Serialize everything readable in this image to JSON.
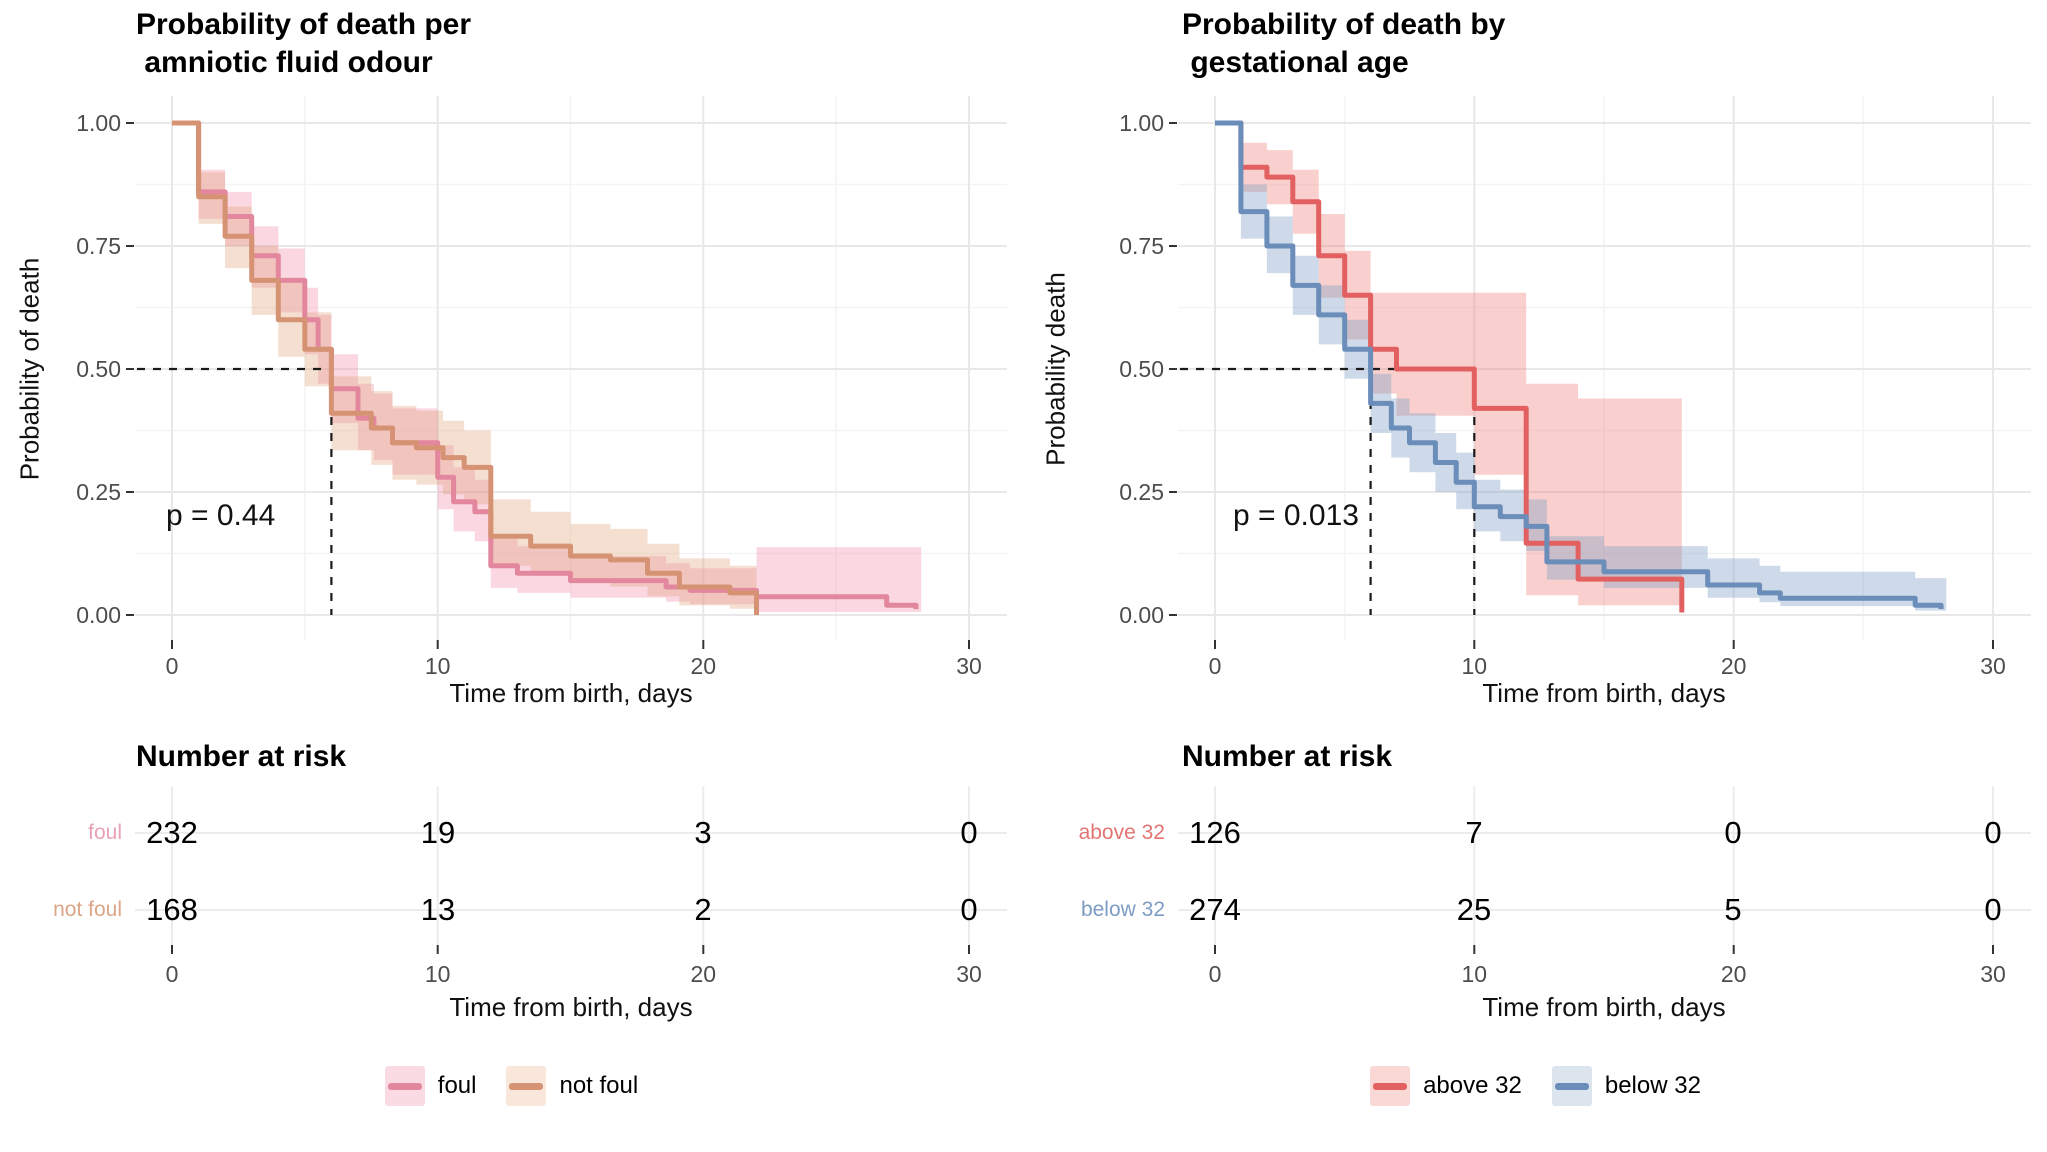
{
  "page": {
    "background": "#ffffff"
  },
  "chart_data": [
    {
      "type": "km_survival",
      "title": "Probability of death per\n amniotic fluid odour",
      "p_value_label": "p = 0.44",
      "x_axis": {
        "label": "Time from birth, days",
        "ticks": [
          0,
          10,
          20,
          30
        ],
        "minor_ticks": [
          5,
          15,
          25
        ],
        "range": [
          0,
          30
        ]
      },
      "y_axis": {
        "label": "Probability of death",
        "ticks": [
          "0.00",
          "0.25",
          "0.50",
          "0.75",
          "1.00"
        ],
        "tick_values": [
          0,
          0.25,
          0.5,
          0.75,
          1
        ],
        "range": [
          0,
          1
        ]
      },
      "grid": true,
      "legend_position": "bottom",
      "median_lines": {
        "prob": 0.5,
        "times": [
          6
        ]
      },
      "series": [
        {
          "name": "foul",
          "line_color": "#E2879E",
          "band_color": "#F08FAC",
          "band_opacity": 0.36,
          "legend_bg": "#FBDBE3",
          "steps": [
            [
              0,
              1
            ],
            [
              1,
              0.86
            ],
            [
              2,
              0.81
            ],
            [
              3,
              0.73
            ],
            [
              4,
              0.68
            ],
            [
              5,
              0.6
            ],
            [
              5.5,
              0.54
            ],
            [
              6,
              0.46
            ],
            [
              7,
              0.4
            ],
            [
              7.6,
              0.38
            ],
            [
              8.3,
              0.35
            ],
            [
              10,
              0.28
            ],
            [
              10.6,
              0.23
            ],
            [
              11.4,
              0.21
            ],
            [
              12,
              0.1
            ],
            [
              13,
              0.085
            ],
            [
              15,
              0.07
            ],
            [
              18.6,
              0.057
            ],
            [
              19.5,
              0.05
            ],
            [
              22,
              0.037
            ],
            [
              26.9,
              0.02
            ],
            [
              28,
              0.012
            ]
          ],
          "band": [
            [
              1,
              0.805,
              0.905
            ],
            [
              2,
              0.75,
              0.86
            ],
            [
              3,
              0.665,
              0.79
            ],
            [
              4,
              0.615,
              0.745
            ],
            [
              5,
              0.53,
              0.665
            ],
            [
              5.5,
              0.47,
              0.61
            ],
            [
              6,
              0.39,
              0.53
            ],
            [
              7,
              0.335,
              0.47
            ],
            [
              7.6,
              0.315,
              0.45
            ],
            [
              8.3,
              0.285,
              0.42
            ],
            [
              10,
              0.215,
              0.345
            ],
            [
              10.6,
              0.17,
              0.3
            ],
            [
              11.4,
              0.15,
              0.275
            ],
            [
              12,
              0.055,
              0.155
            ],
            [
              13,
              0.045,
              0.14
            ],
            [
              15,
              0.035,
              0.12
            ],
            [
              18.6,
              0.027,
              0.105
            ],
            [
              19.5,
              0.022,
              0.095
            ],
            [
              22,
              0.006,
              0.138
            ],
            [
              28.2,
              0.006,
              0.138
            ]
          ]
        },
        {
          "name": "not foul",
          "line_color": "#D69374",
          "band_color": "#DFA077",
          "band_opacity": 0.34,
          "legend_bg": "#F8E7DA",
          "steps": [
            [
              0,
              1
            ],
            [
              1,
              0.85
            ],
            [
              2,
              0.77
            ],
            [
              3,
              0.68
            ],
            [
              4,
              0.6
            ],
            [
              5,
              0.54
            ],
            [
              6,
              0.41
            ],
            [
              7.5,
              0.38
            ],
            [
              8.3,
              0.35
            ],
            [
              9.2,
              0.34
            ],
            [
              10.2,
              0.32
            ],
            [
              11,
              0.3
            ],
            [
              12,
              0.16
            ],
            [
              13.5,
              0.14
            ],
            [
              15,
              0.12
            ],
            [
              16.5,
              0.112
            ],
            [
              17.9,
              0.085
            ],
            [
              19.1,
              0.057
            ],
            [
              21,
              0.045
            ],
            [
              22,
              0
            ]
          ],
          "band": [
            [
              1,
              0.795,
              0.9
            ],
            [
              2,
              0.705,
              0.83
            ],
            [
              3,
              0.61,
              0.75
            ],
            [
              4,
              0.525,
              0.675
            ],
            [
              5,
              0.465,
              0.615
            ],
            [
              6,
              0.335,
              0.485
            ],
            [
              7.5,
              0.305,
              0.455
            ],
            [
              8.3,
              0.275,
              0.425
            ],
            [
              9.2,
              0.265,
              0.415
            ],
            [
              10.2,
              0.245,
              0.395
            ],
            [
              11,
              0.225,
              0.375
            ],
            [
              12,
              0.1,
              0.235
            ],
            [
              13.5,
              0.082,
              0.21
            ],
            [
              15,
              0.065,
              0.185
            ],
            [
              16.5,
              0.058,
              0.175
            ],
            [
              17.9,
              0.038,
              0.145
            ],
            [
              19.1,
              0.02,
              0.115
            ],
            [
              21,
              0.013,
              0.1
            ],
            [
              22,
              0,
              0
            ]
          ]
        }
      ],
      "risk_table": {
        "heading": "Number at risk",
        "rows": [
          {
            "label": "foul",
            "color": "#E8A2B5",
            "values": [
              232,
              19,
              3,
              0
            ]
          },
          {
            "label": "not foul",
            "color": "#DBA687",
            "values": [
              168,
              13,
              2,
              0
            ]
          }
        ]
      }
    },
    {
      "type": "km_survival",
      "title": "Probability of death by\n gestational age",
      "p_value_label": "p = 0.013",
      "x_axis": {
        "label": "Time from birth, days",
        "ticks": [
          0,
          10,
          20,
          30
        ],
        "minor_ticks": [
          5,
          15,
          25
        ],
        "range": [
          0,
          30
        ]
      },
      "y_axis": {
        "label": "Probability death",
        "ticks": [
          "0.00",
          "0.25",
          "0.50",
          "0.75",
          "1.00"
        ],
        "tick_values": [
          0,
          0.25,
          0.5,
          0.75,
          1
        ],
        "range": [
          0,
          1
        ]
      },
      "grid": true,
      "legend_position": "bottom",
      "median_lines": {
        "prob": 0.5,
        "times": [
          6,
          10
        ]
      },
      "series": [
        {
          "name": "above 32",
          "line_color": "#E26060",
          "band_color": "#EE7C78",
          "band_opacity": 0.36,
          "legend_bg": "#FAD8D6",
          "steps": [
            [
              0,
              1
            ],
            [
              1,
              0.91
            ],
            [
              2,
              0.89
            ],
            [
              3,
              0.84
            ],
            [
              4,
              0.73
            ],
            [
              5,
              0.65
            ],
            [
              6,
              0.54
            ],
            [
              7,
              0.5
            ],
            [
              10,
              0.42
            ],
            [
              12,
              0.146
            ],
            [
              14,
              0.073
            ],
            [
              18,
              0.005
            ]
          ],
          "band": [
            [
              1,
              0.86,
              0.96
            ],
            [
              2,
              0.835,
              0.945
            ],
            [
              3,
              0.775,
              0.905
            ],
            [
              4,
              0.645,
              0.815
            ],
            [
              5,
              0.56,
              0.74
            ],
            [
              6,
              0.45,
              0.655
            ],
            [
              7,
              0.405,
              0.655
            ],
            [
              10,
              0.285,
              0.655
            ],
            [
              12,
              0.04,
              0.47
            ],
            [
              14,
              0.02,
              0.44
            ],
            [
              18,
              0.02,
              0.44
            ]
          ]
        },
        {
          "name": "below 32",
          "line_color": "#6B8DB9",
          "band_color": "#7F9EC6",
          "band_opacity": 0.38,
          "legend_bg": "#DCE4EE",
          "steps": [
            [
              0,
              1
            ],
            [
              1,
              0.82
            ],
            [
              2,
              0.75
            ],
            [
              3,
              0.67
            ],
            [
              4,
              0.61
            ],
            [
              5,
              0.54
            ],
            [
              6,
              0.43
            ],
            [
              6.8,
              0.38
            ],
            [
              7.5,
              0.35
            ],
            [
              8.5,
              0.31
            ],
            [
              9.3,
              0.27
            ],
            [
              10,
              0.22
            ],
            [
              11,
              0.2
            ],
            [
              12,
              0.18
            ],
            [
              12.8,
              0.108
            ],
            [
              15,
              0.088
            ],
            [
              19,
              0.061
            ],
            [
              21,
              0.045
            ],
            [
              21.8,
              0.034
            ],
            [
              27,
              0.02
            ],
            [
              28,
              0.012
            ]
          ],
          "band": [
            [
              1,
              0.765,
              0.875
            ],
            [
              2,
              0.695,
              0.81
            ],
            [
              3,
              0.61,
              0.73
            ],
            [
              4,
              0.55,
              0.67
            ],
            [
              5,
              0.48,
              0.6
            ],
            [
              6,
              0.37,
              0.49
            ],
            [
              6.8,
              0.32,
              0.44
            ],
            [
              7.5,
              0.29,
              0.41
            ],
            [
              8.5,
              0.25,
              0.37
            ],
            [
              9.3,
              0.215,
              0.33
            ],
            [
              10,
              0.17,
              0.275
            ],
            [
              11,
              0.15,
              0.255
            ],
            [
              12,
              0.13,
              0.235
            ],
            [
              12.8,
              0.072,
              0.16
            ],
            [
              15,
              0.055,
              0.14
            ],
            [
              19,
              0.035,
              0.115
            ],
            [
              21,
              0.026,
              0.1
            ],
            [
              21.8,
              0.018,
              0.088
            ],
            [
              27,
              0.009,
              0.075
            ],
            [
              28.2,
              0.009,
              0.075
            ]
          ]
        }
      ],
      "risk_table": {
        "heading": "Number at risk",
        "rows": [
          {
            "label": "above 32",
            "color": "#E27573",
            "values": [
              126,
              7,
              0,
              0
            ]
          },
          {
            "label": "below 32",
            "color": "#7D9CC4",
            "values": [
              274,
              25,
              5,
              0
            ]
          }
        ]
      }
    }
  ]
}
